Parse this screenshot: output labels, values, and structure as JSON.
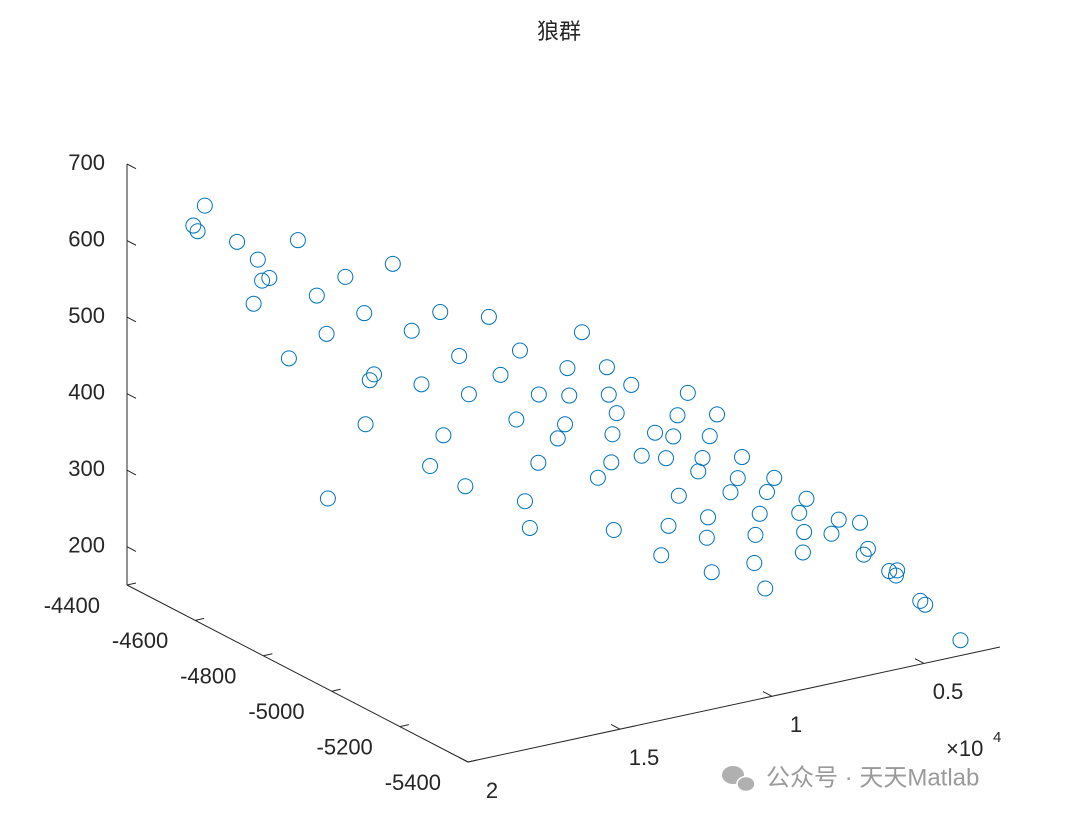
{
  "chart_data": {
    "type": "scatter3d",
    "title": "狼群",
    "color": "#0072bd",
    "x": [
      19500,
      18800,
      18500,
      18000,
      19200,
      18600,
      17500,
      17800,
      19000,
      17000,
      16800,
      16500,
      17200,
      16200,
      15500,
      16000,
      15000,
      15800,
      14800,
      14500,
      15200,
      14000,
      13800,
      15600,
      14200,
      13500,
      13000,
      12800,
      13200,
      12500,
      14600,
      12200,
      12000,
      11500,
      11800,
      11000,
      11200,
      10800,
      10500,
      10200,
      10600,
      10000,
      9800,
      9500,
      9700,
      9200,
      9000,
      9300,
      8800,
      8500,
      8700,
      8200,
      8000,
      8300,
      7800,
      7500,
      7600,
      7200,
      7000,
      7300,
      6800,
      6500,
      6700,
      6300,
      6000,
      6200,
      5800,
      5500,
      5300,
      5000,
      4800,
      4600,
      4400,
      4200,
      4000,
      4300,
      3900,
      3800,
      11400,
      10300,
      9100,
      8400,
      12400,
      10900,
      7900,
      6600,
      9900,
      8900
    ],
    "y": [
      -4550,
      -4500,
      -4650,
      -4450,
      -4700,
      -4750,
      -4500,
      -4600,
      -4900,
      -4550,
      -4700,
      -4800,
      -4850,
      -4950,
      -4500,
      -4600,
      -4650,
      -4750,
      -4800,
      -4550,
      -4900,
      -4700,
      -4850,
      -5000,
      -5050,
      -4600,
      -4750,
      -4900,
      -5000,
      -4650,
      -5100,
      -4800,
      -4950,
      -4850,
      -5050,
      -4750,
      -4900,
      -5000,
      -4850,
      -4950,
      -5150,
      -4800,
      -5000,
      -4900,
      -5100,
      -4850,
      -5000,
      -5150,
      -4950,
      -5050,
      -4800,
      -4950,
      -5100,
      -5200,
      -5000,
      -4900,
      -5150,
      -5050,
      -4950,
      -5250,
      -5100,
      -5000,
      -5200,
      -5150,
      -5050,
      -4900,
      -5200,
      -5100,
      -5250,
      -5150,
      -5300,
      -5200,
      -5350,
      -5250,
      -5300,
      -5150,
      -5200,
      -5400,
      -5200,
      -5250,
      -5300,
      -4700,
      -5150,
      -4650,
      -4800,
      -4850,
      -5200,
      -5250
    ],
    "z": [
      650,
      625,
      620,
      640,
      580,
      515,
      600,
      575,
      370,
      560,
      520,
      480,
      440,
      400,
      585,
      540,
      520,
      470,
      460,
      540,
      420,
      500,
      450,
      380,
      360,
      560,
      470,
      420,
      390,
      500,
      340,
      450,
      400,
      430,
      370,
      460,
      400,
      370,
      420,
      390,
      320,
      440,
      370,
      400,
      340,
      410,
      360,
      320,
      380,
      350,
      430,
      370,
      330,
      300,
      350,
      380,
      310,
      330,
      360,
      280,
      320,
      340,
      290,
      300,
      320,
      370,
      280,
      300,
      260,
      280,
      240,
      250,
      210,
      230,
      200,
      270,
      215,
      170,
      300,
      280,
      260,
      450,
      330,
      480,
      400,
      390,
      310,
      280
    ],
    "xlim": [
      2500,
      20000
    ],
    "ylim": [
      -5400,
      -4400
    ],
    "zlim": [
      150,
      700
    ],
    "xticks": [
      {
        "value": 5000,
        "label": "0.5"
      },
      {
        "value": 10000,
        "label": "1"
      },
      {
        "value": 15000,
        "label": "1.5"
      },
      {
        "value": 20000,
        "label": "2"
      }
    ],
    "x_exponent": {
      "base": "×10",
      "power": "4"
    },
    "yticks": [
      -5400,
      -5200,
      -5000,
      -4800,
      -4600,
      -4400
    ],
    "zticks": [
      200,
      300,
      400,
      500,
      600,
      700
    ],
    "watermark": "公众号 · 天天Matlab"
  }
}
